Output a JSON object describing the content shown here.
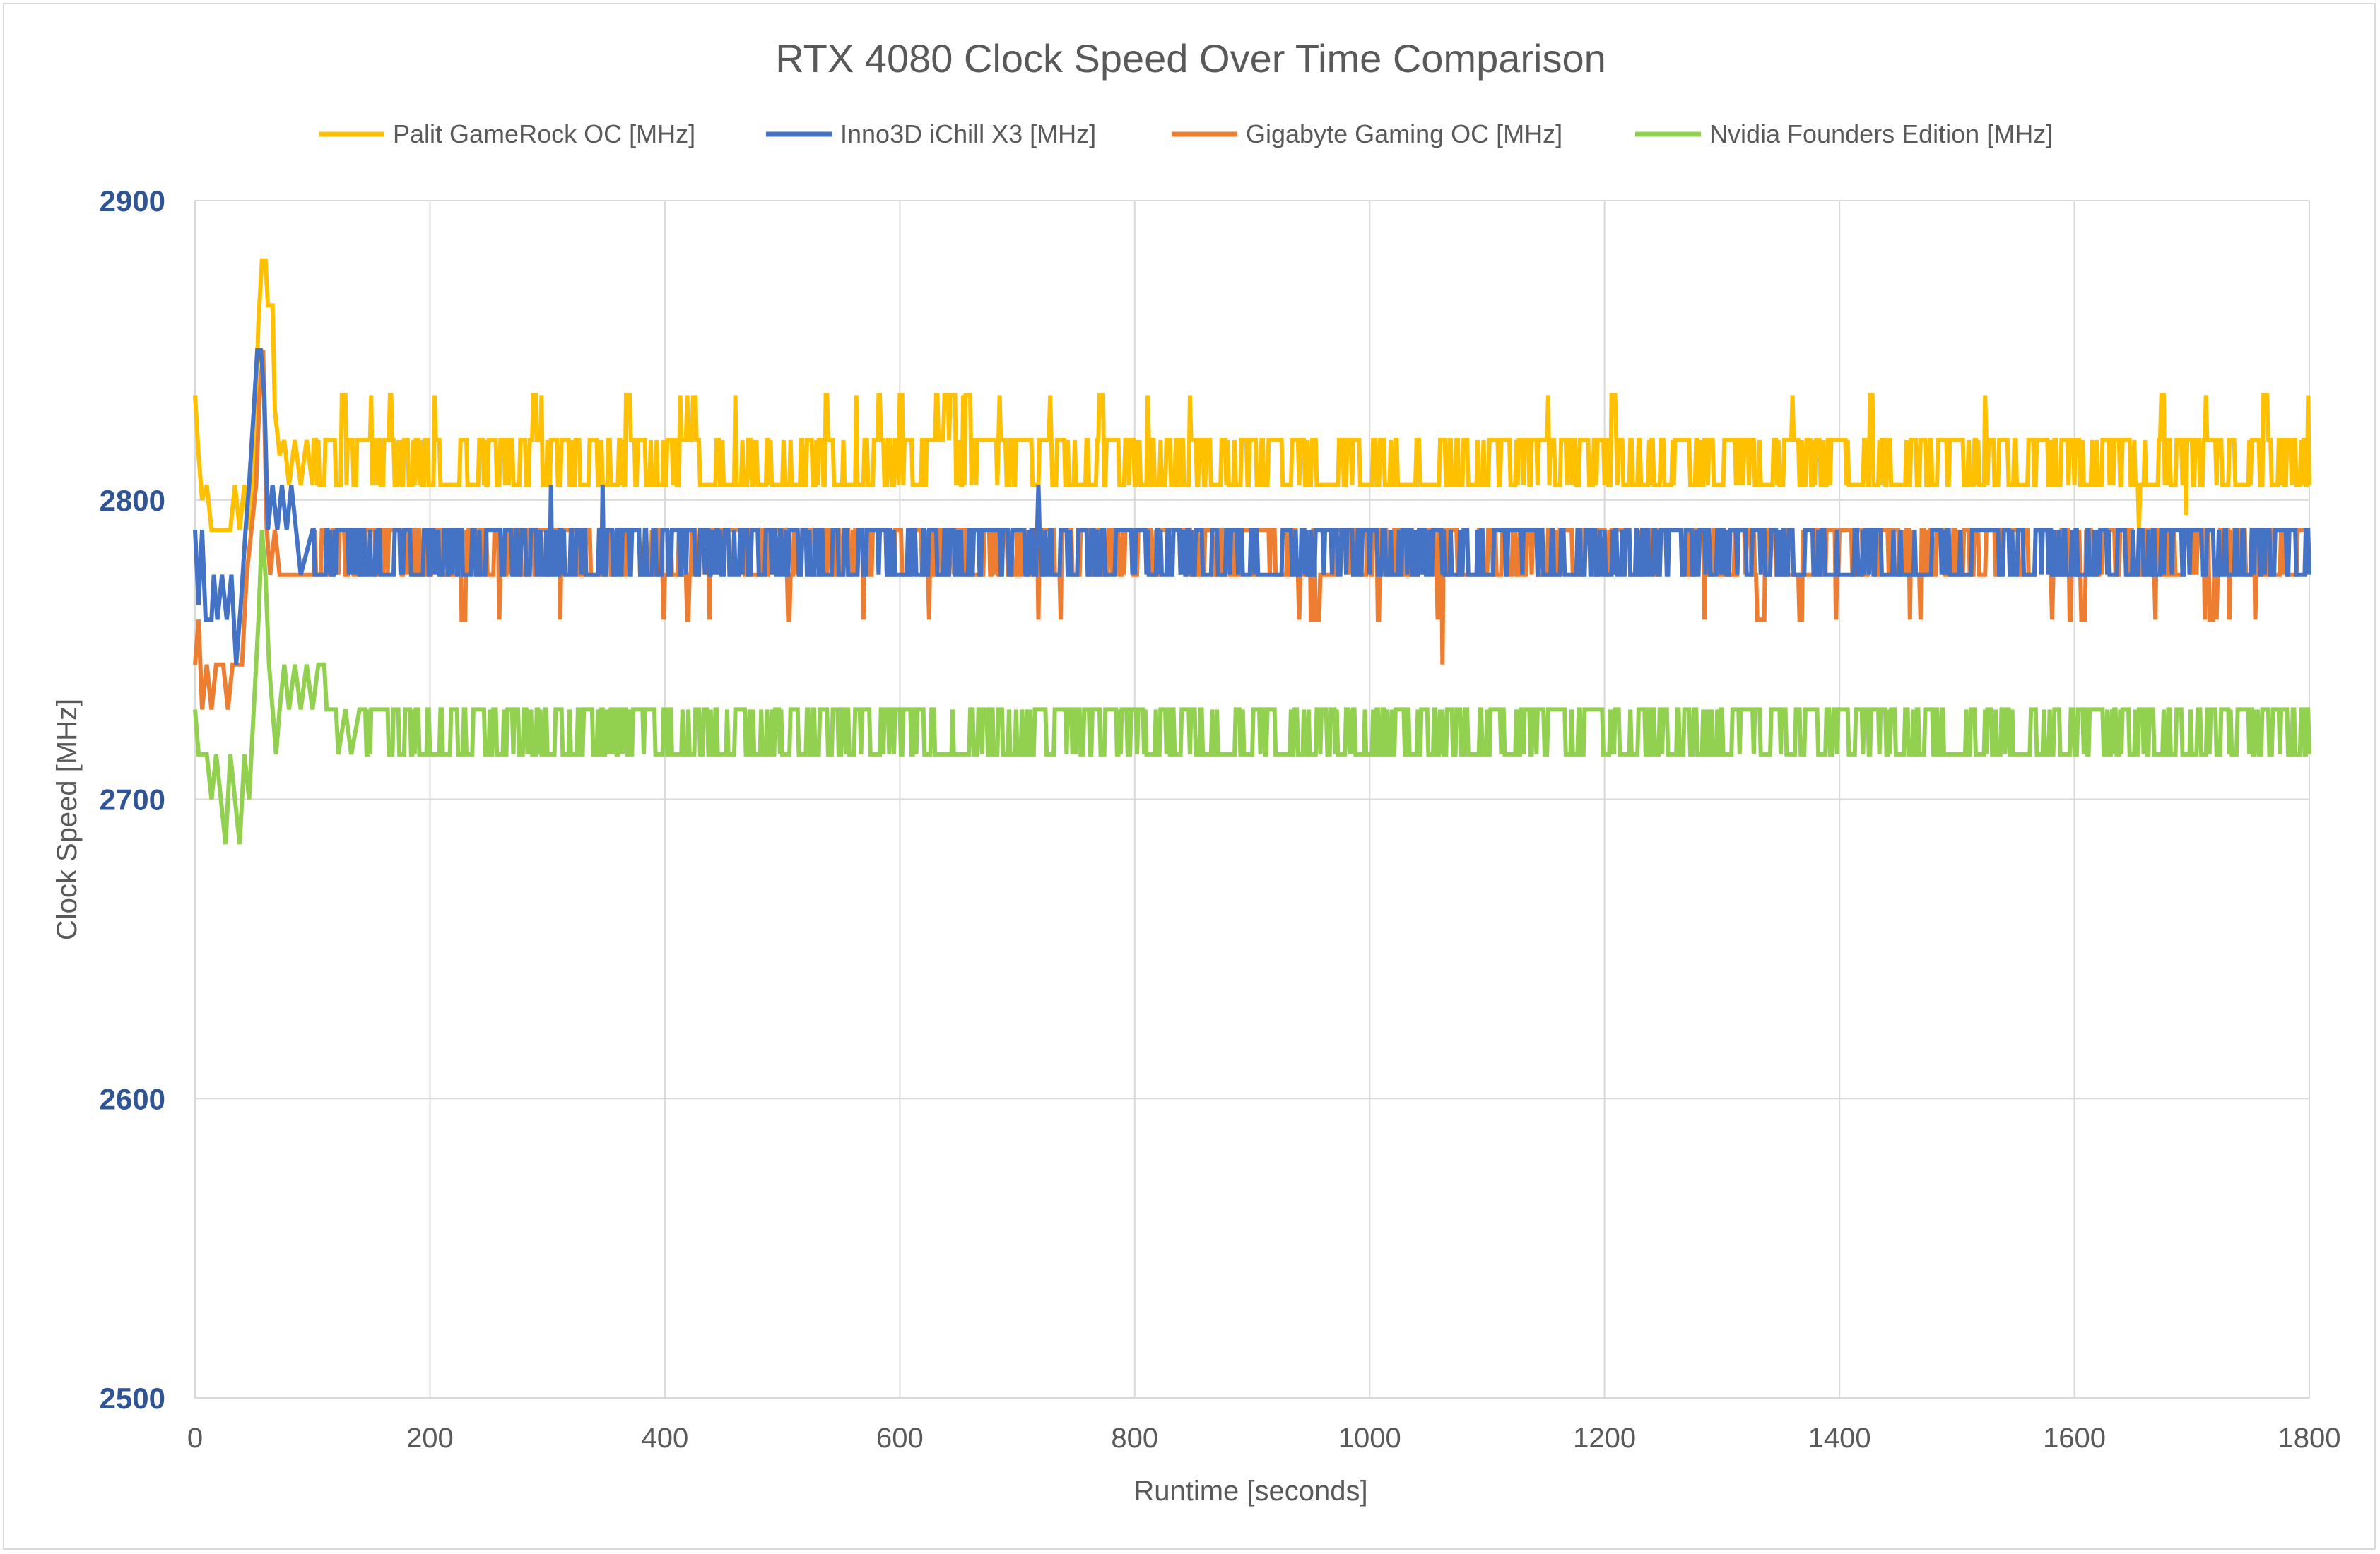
{
  "chart_data": {
    "type": "line",
    "title": "RTX 4080 Clock Speed Over Time Comparison",
    "xlabel": "Runtime [seconds]",
    "ylabel": "Clock Speed [MHz]",
    "xlim": [
      0,
      1800
    ],
    "ylim": [
      2500,
      2900
    ],
    "x_ticks": [
      0,
      200,
      400,
      600,
      800,
      1000,
      1200,
      1400,
      1600,
      1800
    ],
    "x_tick_labels": [
      "0",
      "200",
      "400",
      "600",
      "800",
      "1000",
      "1200",
      "1400",
      "1600",
      "1800"
    ],
    "y_ticks": [
      2500,
      2600,
      2700,
      2800,
      2900
    ],
    "y_tick_labels": [
      "2500",
      "2600",
      "2700",
      "2800",
      "2900"
    ],
    "grid": true,
    "legend_position": "top",
    "series": [
      {
        "name": "Palit GameRock OC [MHz]",
        "color": "#ffc000",
        "levels": [
          2805,
          2820,
          2835
        ],
        "steady": [
          2805,
          2820
        ],
        "spike_rate": 0.05,
        "startup": [
          [
            0,
            2835
          ],
          [
            3,
            2815
          ],
          [
            6,
            2800
          ],
          [
            10,
            2805
          ],
          [
            14,
            2790
          ],
          [
            30,
            2790
          ],
          [
            34,
            2805
          ],
          [
            38,
            2790
          ],
          [
            42,
            2805
          ],
          [
            46,
            2790
          ],
          [
            50,
            2810
          ],
          [
            54,
            2860
          ],
          [
            57,
            2880
          ],
          [
            60,
            2880
          ],
          [
            62,
            2865
          ],
          [
            66,
            2865
          ],
          [
            68,
            2830
          ],
          [
            72,
            2815
          ],
          [
            76,
            2820
          ],
          [
            80,
            2805
          ],
          [
            85,
            2820
          ],
          [
            90,
            2805
          ],
          [
            95,
            2820
          ],
          [
            100,
            2805
          ]
        ],
        "dips": [
          [
            1655,
            2790
          ],
          [
            1695,
            2795
          ]
        ]
      },
      {
        "name": "Inno3D iChill X3 [MHz]",
        "color": "#4472c4",
        "levels": [
          2775,
          2790
        ],
        "steady": [
          2775,
          2790
        ],
        "spike_rate": 0.0,
        "startup": [
          [
            0,
            2790
          ],
          [
            3,
            2765
          ],
          [
            6,
            2790
          ],
          [
            9,
            2760
          ],
          [
            14,
            2760
          ],
          [
            16,
            2775
          ],
          [
            19,
            2760
          ],
          [
            23,
            2775
          ],
          [
            27,
            2760
          ],
          [
            31,
            2775
          ],
          [
            35,
            2745
          ],
          [
            39,
            2765
          ],
          [
            43,
            2790
          ],
          [
            46,
            2805
          ],
          [
            50,
            2830
          ],
          [
            53,
            2850
          ],
          [
            56,
            2850
          ],
          [
            59,
            2835
          ],
          [
            62,
            2790
          ],
          [
            66,
            2805
          ],
          [
            70,
            2790
          ],
          [
            74,
            2805
          ],
          [
            78,
            2790
          ],
          [
            82,
            2805
          ],
          [
            86,
            2790
          ],
          [
            90,
            2775
          ],
          [
            100,
            2790
          ]
        ],
        "dips": [
          [
            303,
            2805
          ],
          [
            347,
            2805
          ],
          [
            718,
            2805
          ]
        ]
      },
      {
        "name": "Gigabyte Gaming OC [MHz]",
        "color": "#ed7d31",
        "levels": [
          2760,
          2775,
          2790
        ],
        "steady": [
          2775,
          2790
        ],
        "spike_rate": 0.06,
        "startup": [
          [
            0,
            2745
          ],
          [
            3,
            2760
          ],
          [
            6,
            2730
          ],
          [
            10,
            2745
          ],
          [
            14,
            2730
          ],
          [
            18,
            2745
          ],
          [
            24,
            2745
          ],
          [
            28,
            2730
          ],
          [
            32,
            2745
          ],
          [
            40,
            2745
          ],
          [
            44,
            2775
          ],
          [
            48,
            2790
          ],
          [
            52,
            2805
          ],
          [
            55,
            2835
          ],
          [
            58,
            2850
          ],
          [
            61,
            2790
          ],
          [
            64,
            2775
          ],
          [
            68,
            2790
          ],
          [
            72,
            2775
          ],
          [
            100,
            2775
          ]
        ],
        "dips": [
          [
            1062,
            2745
          ]
        ]
      },
      {
        "name": "Nvidia Founders Edition [MHz]",
        "color": "#92d050",
        "levels": [
          2715,
          2730
        ],
        "steady": [
          2715,
          2730
        ],
        "spike_rate": 0.0,
        "startup": [
          [
            0,
            2730
          ],
          [
            3,
            2715
          ],
          [
            10,
            2715
          ],
          [
            14,
            2700
          ],
          [
            18,
            2715
          ],
          [
            22,
            2700
          ],
          [
            26,
            2685
          ],
          [
            30,
            2715
          ],
          [
            34,
            2700
          ],
          [
            38,
            2685
          ],
          [
            42,
            2715
          ],
          [
            46,
            2700
          ],
          [
            50,
            2730
          ],
          [
            54,
            2760
          ],
          [
            57,
            2790
          ],
          [
            60,
            2775
          ],
          [
            63,
            2745
          ],
          [
            66,
            2730
          ],
          [
            69,
            2715
          ],
          [
            72,
            2730
          ],
          [
            76,
            2745
          ],
          [
            80,
            2730
          ],
          [
            85,
            2745
          ],
          [
            90,
            2730
          ],
          [
            95,
            2745
          ],
          [
            100,
            2730
          ],
          [
            105,
            2745
          ],
          [
            110,
            2745
          ],
          [
            112,
            2730
          ],
          [
            120,
            2730
          ],
          [
            122,
            2715
          ],
          [
            128,
            2730
          ],
          [
            133,
            2715
          ],
          [
            140,
            2730
          ]
        ],
        "dips": []
      }
    ]
  }
}
